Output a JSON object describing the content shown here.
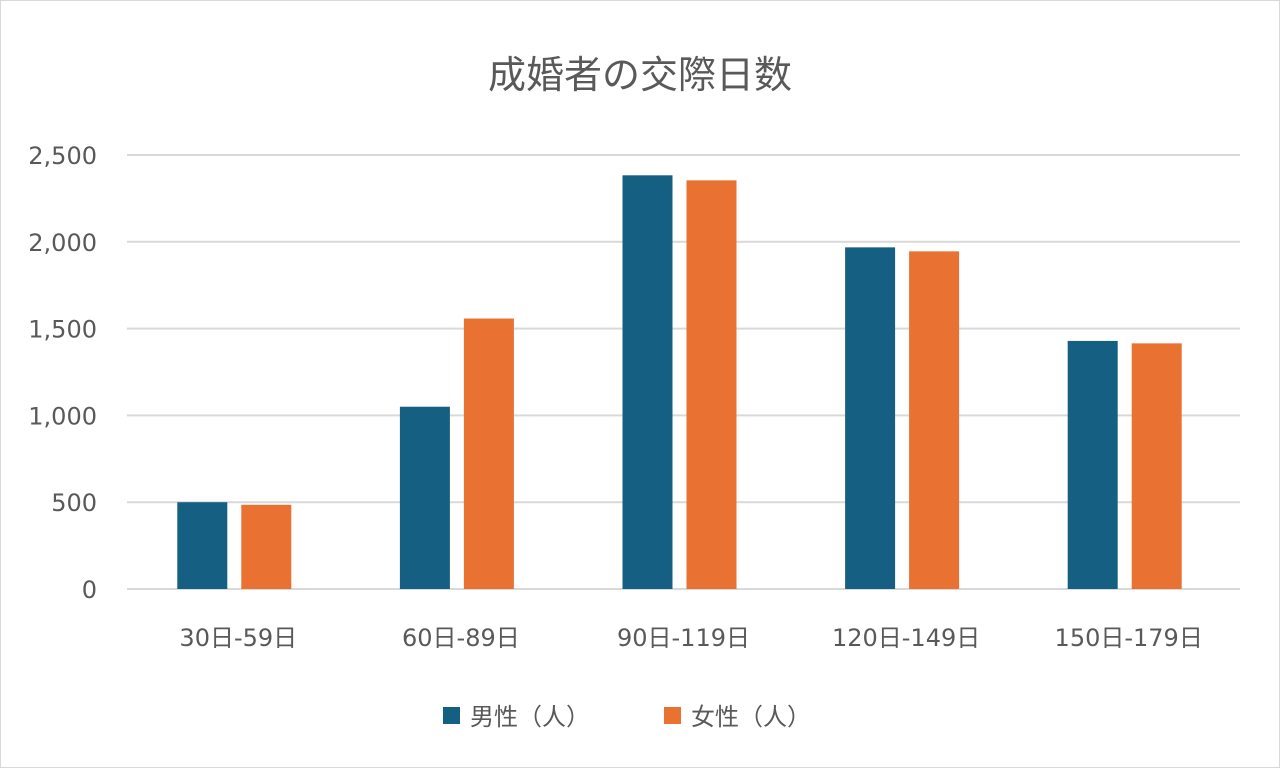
{
  "chart_data": {
    "type": "bar",
    "title": "成婚者の交際日数",
    "xlabel": "",
    "ylabel": "",
    "ylim": [
      0,
      2500
    ],
    "yticks": [
      "0",
      "500",
      "1,000",
      "1,500",
      "2,000",
      "2,500"
    ],
    "ytick_values": [
      0,
      500,
      1000,
      1500,
      2000,
      2500
    ],
    "grid": true,
    "legend_position": "bottom",
    "categories": [
      "30日-59日",
      "60日-89日",
      "90日-119日",
      "120日-149日",
      "150日-179日"
    ],
    "series": [
      {
        "name": "男性（人）",
        "color": "#156082",
        "values": [
          500,
          1050,
          2383,
          1968,
          1429
        ]
      },
      {
        "name": "女性（人）",
        "color": "#E97132",
        "values": [
          485,
          1558,
          2354,
          1945,
          1415
        ]
      }
    ]
  }
}
